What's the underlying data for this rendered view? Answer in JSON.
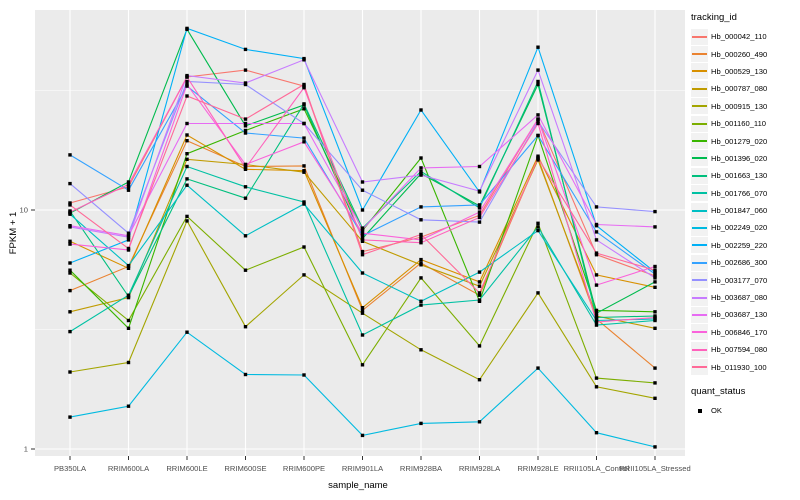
{
  "figure": {
    "bg": "#FFFFFF",
    "panel_bg": "#EBEBEB",
    "grid_color": "#FFFFFF",
    "tick_color": "#333333",
    "axis_text_color": "#4D4D4D"
  },
  "chart_data": {
    "type": "line",
    "xlabel": "sample_name",
    "ylabel": "FPKM + 1",
    "y_scale": "log10",
    "y_tick_labels": [
      "1",
      "10"
    ],
    "y_tick_values": [
      1,
      10
    ],
    "y_minor_values": [
      3.162,
      31.62
    ],
    "ylim": [
      0.93,
      68
    ],
    "grid": true,
    "legend_position": "right",
    "marker": {
      "shape": "square",
      "color": "#000000",
      "size": 3.4
    },
    "categories": [
      "PB350LA",
      "RRIM600LA",
      "RRIM600LE",
      "RRIM600SE",
      "RRIM600PE",
      "RRIM901LA",
      "RRIM928BA",
      "RRIM928LA",
      "RRIM928LE",
      "RRII105LA_Control",
      "RRII105LA_Stressed"
    ],
    "legend": {
      "title": "tracking_id"
    },
    "legend2": {
      "title": "quant_status",
      "items": [
        {
          "label": "OK",
          "marker": "black-square"
        }
      ]
    },
    "series": [
      {
        "name": "Hb_000042_110",
        "color": "#F8766D",
        "values": [
          10.7,
          12.5,
          36,
          38.5,
          33,
          6.7,
          7.7,
          9.5,
          24,
          6.5,
          5.3
        ]
      },
      {
        "name": "Hb_000260_490",
        "color": "#EA8331",
        "values": [
          4.6,
          5.8,
          19.5,
          15.2,
          15.3,
          3.8,
          6.0,
          4.4,
          16.5,
          3.5,
          2.18
        ]
      },
      {
        "name": "Hb_000529_130",
        "color": "#D89000",
        "values": [
          7.4,
          5.7,
          20.6,
          14.8,
          14.6,
          3.9,
          6.2,
          5.0,
          16.8,
          5.35,
          4.75
        ]
      },
      {
        "name": "Hb_000787_080",
        "color": "#C09B00",
        "values": [
          3.75,
          4.3,
          16.3,
          15.5,
          14.4,
          7.4,
          5.9,
          4.8,
          16.2,
          3.6,
          3.2
        ]
      },
      {
        "name": "Hb_000915_130",
        "color": "#A3A500",
        "values": [
          2.1,
          2.3,
          9.0,
          3.25,
          5.35,
          3.7,
          2.6,
          1.95,
          4.5,
          1.82,
          1.63
        ]
      },
      {
        "name": "Hb_001160_110",
        "color": "#7CAE00",
        "values": [
          5.45,
          3.45,
          9.4,
          5.6,
          7.0,
          2.25,
          5.2,
          2.7,
          8.8,
          1.98,
          1.89
        ]
      },
      {
        "name": "Hb_001279_020",
        "color": "#39B600",
        "values": [
          5.6,
          3.2,
          17.2,
          21.5,
          26.5,
          8.2,
          16.5,
          4.15,
          20.5,
          3.8,
          3.75
        ]
      },
      {
        "name": "Hb_001396_020",
        "color": "#00BB4E",
        "values": [
          9.7,
          13.1,
          57,
          22.5,
          27.5,
          7.6,
          14.2,
          10.4,
          33.5,
          3.7,
          5.0
        ]
      },
      {
        "name": "Hb_001663_130",
        "color": "#00BF7D",
        "values": [
          9.9,
          4.35,
          13.5,
          11.2,
          27.8,
          8.4,
          14.5,
          10.2,
          34.5,
          3.55,
          3.6
        ]
      },
      {
        "name": "Hb_001766_070",
        "color": "#00C1A3",
        "values": [
          3.1,
          4.4,
          15.2,
          12.5,
          10.8,
          3.0,
          4.0,
          4.2,
          8.5,
          3.3,
          3.45
        ]
      },
      {
        "name": "Hb_001847_060",
        "color": "#00BFC4",
        "values": [
          9.6,
          5.85,
          12.7,
          7.8,
          10.6,
          5.45,
          4.15,
          5.5,
          8.2,
          3.45,
          3.5
        ]
      },
      {
        "name": "Hb_002249_020",
        "color": "#00BAE0",
        "values": [
          1.36,
          1.51,
          3.08,
          2.05,
          2.04,
          1.14,
          1.28,
          1.3,
          2.18,
          1.17,
          1.02
        ]
      },
      {
        "name": "Hb_002259_220",
        "color": "#00B0F6",
        "values": [
          6.0,
          7.5,
          57.5,
          47,
          43,
          10.0,
          26.2,
          11.9,
          48,
          8.6,
          5.5
        ]
      },
      {
        "name": "Hb_002686_300",
        "color": "#35A2FF",
        "values": [
          17,
          12.1,
          33,
          21,
          20,
          7.8,
          10.3,
          10.5,
          20.5,
          8.1,
          5.4
        ]
      },
      {
        "name": "Hb_003177_070",
        "color": "#9590FF",
        "values": [
          12.9,
          8.0,
          34.5,
          33.5,
          23,
          12.1,
          9.1,
          8.9,
          23.5,
          10.3,
          9.85
        ]
      },
      {
        "name": "Hb_003687_080",
        "color": "#C77CFF",
        "values": [
          8.5,
          7.7,
          36.5,
          34,
          42.5,
          13.1,
          14.0,
          12.0,
          38.5,
          7.5,
          5.2
        ]
      },
      {
        "name": "Hb_003687_130",
        "color": "#E76BF3",
        "values": [
          8.6,
          7.8,
          23,
          23,
          23,
          8.3,
          15.0,
          15.2,
          25,
          8.7,
          8.5
        ]
      },
      {
        "name": "Hb_006846_170",
        "color": "#FA62DB",
        "values": [
          7.2,
          6.8,
          33.5,
          15.5,
          19.3,
          8.0,
          7.5,
          9.8,
          24,
          4.85,
          5.8
        ]
      },
      {
        "name": "Hb_007594_080",
        "color": "#FF62BC",
        "values": [
          9.8,
          12.8,
          36,
          15.0,
          32.5,
          7.5,
          7.3,
          9.3,
          23,
          3.4,
          3.55
        ]
      },
      {
        "name": "Hb_011930_100",
        "color": "#FF6A98",
        "values": [
          10.5,
          6.9,
          30,
          24,
          33.5,
          6.5,
          7.9,
          4.5,
          16.5,
          6.6,
          5.6
        ]
      }
    ]
  }
}
